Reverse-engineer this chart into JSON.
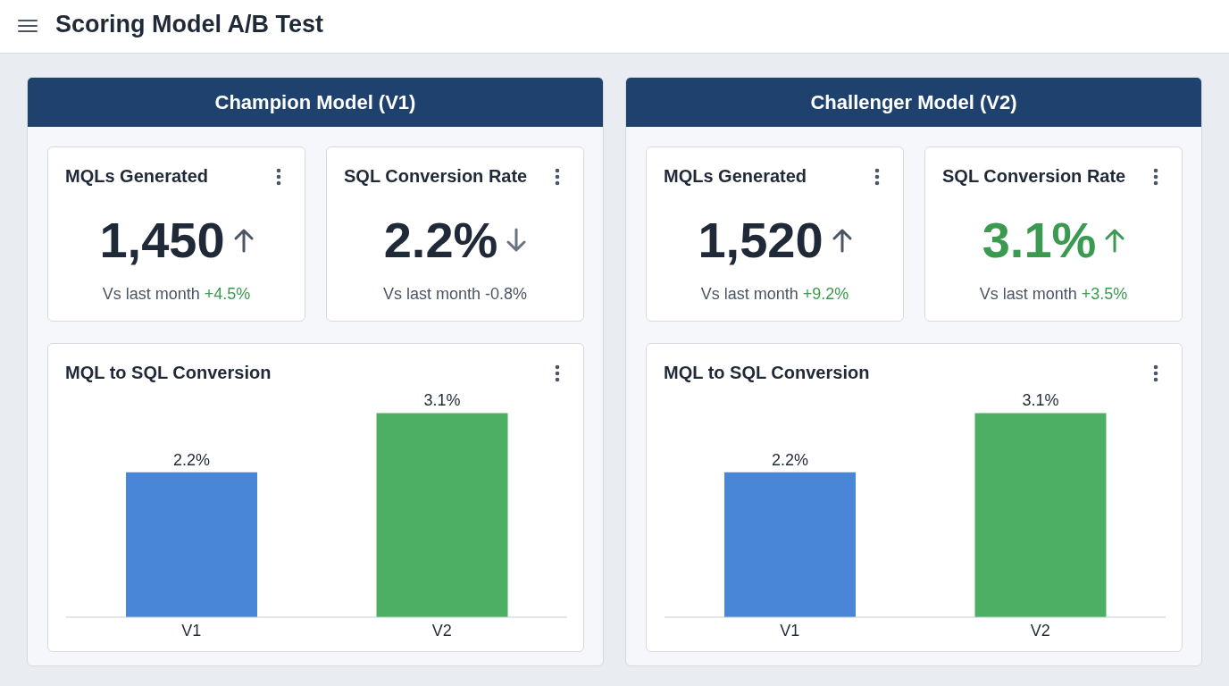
{
  "chart_data": [
    {
      "type": "other",
      "title": "Scoring Model A/B Test"
    },
    {
      "type": "other",
      "title": "Champion Model (V1)"
    },
    {
      "type": "other",
      "title": "MQLs Generated",
      "annotations": [
        "1,450",
        "Vs last month",
        "+4.5%"
      ],
      "colors": [
        "#1f2937",
        "#4b5563",
        "#3a9a4f"
      ]
    },
    {
      "type": "other",
      "title": "SQL Conversion Rate",
      "annotations": [
        "2.2%",
        "Vs last month",
        "-0.8%"
      ],
      "colors": [
        "#1f2937",
        "#4b5563",
        "#4b5563"
      ]
    },
    {
      "type": "bar",
      "title": "MQL to SQL Conversion",
      "categories": [
        "V1",
        "V2"
      ],
      "values": [
        2.2,
        3.1
      ],
      "colors": [
        "#4a86d8",
        "#4caf64"
      ],
      "value_labels": [
        "2.2%",
        "3.1%"
      ]
    },
    {
      "type": "other",
      "title": "Challenger Model (V2)"
    },
    {
      "type": "other",
      "title": "MQLs Generated",
      "annotations": [
        "1,520",
        "Vs last month",
        "+9.2%"
      ],
      "colors": [
        "#1f2937",
        "#4b5563",
        "#3a9a4f"
      ]
    },
    {
      "type": "other",
      "title": "SQL Conversion Rate",
      "annotations": [
        "3.1%",
        "Vs last month",
        "+3.5%"
      ],
      "colors": [
        "#3a9a4f",
        "#4b5563",
        "#3a9a4f"
      ]
    },
    {
      "type": "bar",
      "title": "MQL to SQL Conversion",
      "categories": [
        "V1",
        "V2"
      ],
      "values": [
        2.2,
        3.1
      ],
      "colors": [
        "#4a86d8",
        "#4caf64"
      ],
      "value_labels": [
        "2.2%",
        "3.1%"
      ]
    }
  ]
}
